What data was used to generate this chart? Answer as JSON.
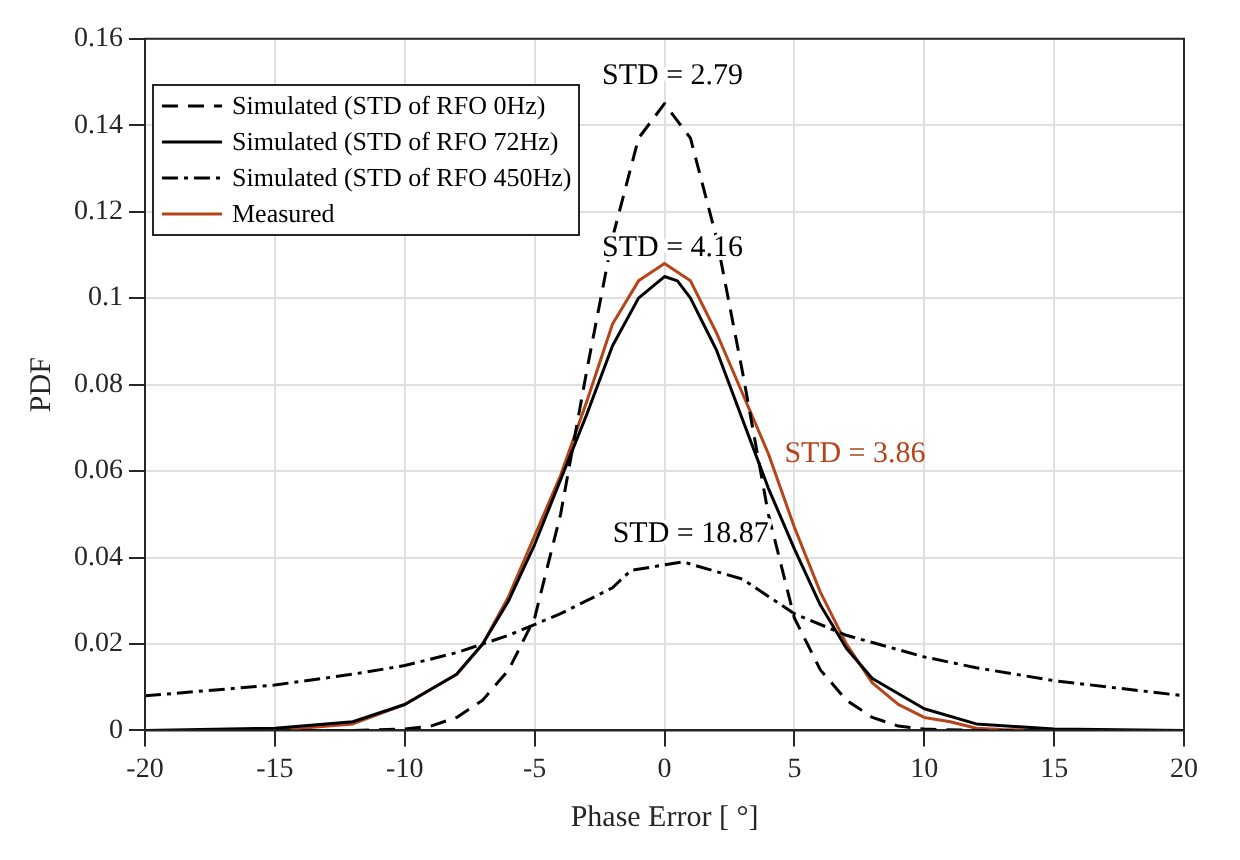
{
  "chart_data": {
    "type": "line",
    "xlabel": "Phase Error [ °]",
    "ylabel": "PDF",
    "xlim": [
      -20,
      20
    ],
    "xticks": [
      -20,
      -15,
      -10,
      -5,
      0,
      5,
      10,
      15,
      20
    ],
    "ylim": [
      0,
      0.16
    ],
    "yticks": [
      0,
      0.02,
      0.04,
      0.06,
      0.08,
      0.1,
      0.12,
      0.14,
      0.16
    ],
    "grid": true,
    "legend": "top left",
    "marker": "none",
    "series": [
      {
        "name": "Simulated (STD of RFO 0Hz)",
        "color": "#000000",
        "line_style": "dashed",
        "x": [
          -20,
          -12,
          -10,
          -9,
          -8,
          -7,
          -6,
          -5,
          -4,
          -3,
          -2,
          -1,
          0,
          1,
          2,
          3,
          4,
          5,
          6,
          7,
          8,
          9,
          10,
          12,
          20
        ],
        "values": [
          0,
          0,
          0.0003,
          0.001,
          0.003,
          0.007,
          0.014,
          0.026,
          0.05,
          0.083,
          0.114,
          0.137,
          0.145,
          0.137,
          0.114,
          0.083,
          0.05,
          0.026,
          0.014,
          0.007,
          0.003,
          0.001,
          0.0003,
          0,
          0
        ]
      },
      {
        "name": "Simulated (STD of RFO 72Hz)",
        "color": "#000000",
        "line_style": "solid",
        "x": [
          -20,
          -15,
          -12,
          -10,
          -8,
          -7,
          -6,
          -5,
          -4,
          -3,
          -2,
          -1,
          0,
          0.5,
          1,
          2,
          3,
          4,
          5,
          6,
          7,
          8,
          10,
          12,
          15,
          20
        ],
        "values": [
          0,
          0.0005,
          0.002,
          0.006,
          0.013,
          0.02,
          0.03,
          0.043,
          0.058,
          0.073,
          0.089,
          0.1,
          0.105,
          0.104,
          0.1,
          0.088,
          0.072,
          0.056,
          0.042,
          0.029,
          0.019,
          0.012,
          0.005,
          0.0015,
          0.0003,
          0
        ]
      },
      {
        "name": "Simulated (STD of RFO 450Hz)",
        "color": "#000000",
        "line_style": "dashdot",
        "x": [
          -20,
          -15,
          -12,
          -10,
          -8,
          -6,
          -4,
          -2,
          -1.3,
          0.7,
          3,
          5,
          7,
          10,
          12,
          15,
          20
        ],
        "values": [
          0.008,
          0.0105,
          0.013,
          0.015,
          0.018,
          0.022,
          0.027,
          0.033,
          0.037,
          0.039,
          0.035,
          0.027,
          0.022,
          0.017,
          0.0145,
          0.0115,
          0.008
        ]
      },
      {
        "name": "Measured",
        "color": "#b5441a",
        "line_style": "solid",
        "x": [
          -17,
          -14,
          -12,
          -10,
          -8,
          -7,
          -6,
          -5,
          -4,
          -3,
          -2,
          -1,
          0,
          1,
          2,
          3,
          4,
          5,
          6,
          7,
          8,
          9,
          10,
          11,
          12,
          13,
          17
        ],
        "values": [
          0,
          0.0005,
          0.0015,
          0.006,
          0.013,
          0.02,
          0.031,
          0.045,
          0.059,
          0.076,
          0.094,
          0.104,
          0.108,
          0.104,
          0.092,
          0.078,
          0.064,
          0.047,
          0.032,
          0.02,
          0.011,
          0.006,
          0.003,
          0.002,
          0.0005,
          0.0002,
          0
        ]
      }
    ],
    "annotations": [
      "STD = 2.79",
      "STD = 4.16",
      "STD = 18.87",
      "STD = 3.86"
    ]
  }
}
